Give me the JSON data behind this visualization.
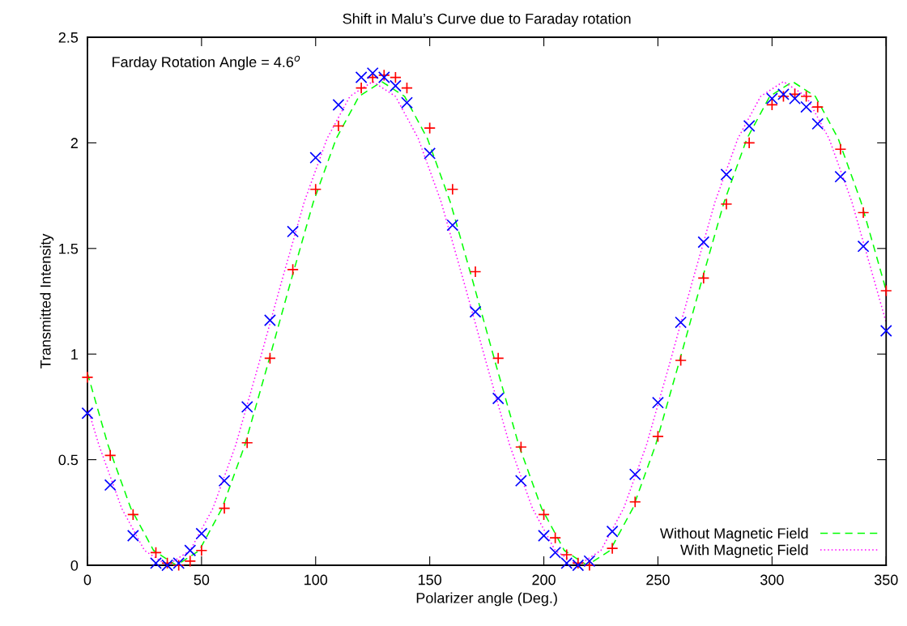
{
  "chart_data": {
    "type": "scatter",
    "title": "Shift in Malu’s Curve due to Faraday rotation",
    "xlabel": "Polarizer angle (Deg.)",
    "ylabel": "Transmitted Intensity",
    "annotations": [
      "Farday Rotation Angle = 4.6$^{o}$"
    ],
    "xlim": [
      0,
      350
    ],
    "ylim": [
      0,
      2.5
    ],
    "xticks": [
      0,
      50,
      100,
      150,
      200,
      250,
      300,
      350
    ],
    "yticks": [
      0,
      0.5,
      1,
      1.5,
      2,
      2.5
    ],
    "grid": false,
    "legend": "bottom right",
    "series": [
      {
        "marker": "plus",
        "color": "#ff0000",
        "x": [
          0,
          10,
          20,
          30,
          35,
          40,
          45,
          50,
          60,
          70,
          80,
          90,
          100,
          110,
          120,
          125,
          130,
          135,
          140,
          150,
          160,
          170,
          180,
          190,
          200,
          205,
          210,
          215,
          220,
          230,
          240,
          250,
          260,
          270,
          280,
          290,
          300,
          305,
          310,
          315,
          320,
          330,
          340,
          350
        ],
        "values": [
          0.89,
          0.52,
          0.24,
          0.06,
          0.01,
          0.0,
          0.02,
          0.07,
          0.27,
          0.58,
          0.98,
          1.4,
          1.78,
          2.08,
          2.26,
          2.31,
          2.32,
          2.31,
          2.26,
          2.07,
          1.78,
          1.39,
          0.98,
          0.56,
          0.24,
          0.13,
          0.05,
          0.01,
          0.0,
          0.08,
          0.3,
          0.61,
          0.97,
          1.36,
          1.71,
          2.0,
          2.18,
          2.22,
          2.23,
          2.22,
          2.17,
          1.97,
          1.67,
          1.3
        ]
      },
      {
        "marker": "cross",
        "color": "#0000ff",
        "x": [
          0,
          10,
          20,
          30,
          35,
          40,
          45,
          50,
          60,
          70,
          80,
          90,
          100,
          110,
          120,
          125,
          130,
          135,
          140,
          150,
          160,
          170,
          180,
          190,
          200,
          205,
          210,
          215,
          220,
          230,
          240,
          250,
          260,
          270,
          280,
          290,
          300,
          305,
          310,
          315,
          320,
          330,
          340,
          350
        ],
        "values": [
          0.72,
          0.38,
          0.14,
          0.01,
          0.0,
          0.01,
          0.07,
          0.15,
          0.4,
          0.75,
          1.16,
          1.58,
          1.93,
          2.18,
          2.31,
          2.33,
          2.31,
          2.27,
          2.19,
          1.95,
          1.61,
          1.2,
          0.79,
          0.4,
          0.14,
          0.06,
          0.01,
          0.0,
          0.02,
          0.16,
          0.43,
          0.77,
          1.15,
          1.53,
          1.85,
          2.08,
          2.21,
          2.23,
          2.21,
          2.17,
          2.09,
          1.84,
          1.51,
          1.11
        ]
      },
      {
        "type": "line",
        "name": "Without Magnetic Field",
        "line_style": "dashed",
        "marker": "none",
        "color": "#00ff00",
        "x": [
          0,
          9,
          19,
          29,
          39,
          49,
          59,
          69,
          79,
          89,
          99,
          109,
          119,
          129,
          139,
          149,
          159,
          169,
          179,
          189,
          199,
          209,
          219,
          229,
          239,
          249,
          259,
          269,
          279,
          289,
          299,
          309,
          319,
          329,
          339,
          349,
          350
        ],
        "values": [
          0.91,
          0.57,
          0.27,
          0.07,
          0,
          0.07,
          0.27,
          0.57,
          0.95,
          1.34,
          1.72,
          2.02,
          2.22,
          2.29,
          2.22,
          2.02,
          1.72,
          1.34,
          0.95,
          0.57,
          0.27,
          0.07,
          0,
          0.07,
          0.27,
          0.57,
          0.95,
          1.34,
          1.72,
          2.02,
          2.22,
          2.29,
          2.22,
          2.02,
          1.72,
          1.34,
          1.3
        ]
      },
      {
        "type": "line",
        "name": "With Magnetic Field",
        "line_style": "dotted",
        "marker": "none",
        "color": "#ff00ff",
        "x": [
          0,
          5,
          15,
          25,
          35,
          45,
          55,
          65,
          75,
          85,
          95,
          105,
          115,
          125,
          135,
          145,
          155,
          165,
          175,
          185,
          195,
          205,
          215,
          225,
          235,
          245,
          255,
          265,
          275,
          285,
          295,
          305,
          315,
          325,
          335,
          345,
          350
        ],
        "values": [
          0.75,
          0.57,
          0.27,
          0.07,
          0,
          0.07,
          0.27,
          0.57,
          0.95,
          1.34,
          1.72,
          2.02,
          2.22,
          2.29,
          2.22,
          2.02,
          1.72,
          1.34,
          0.95,
          0.57,
          0.27,
          0.07,
          0,
          0.07,
          0.27,
          0.57,
          0.95,
          1.34,
          1.72,
          2.02,
          2.22,
          2.29,
          2.22,
          2.02,
          1.72,
          1.34,
          1.15
        ]
      }
    ]
  }
}
